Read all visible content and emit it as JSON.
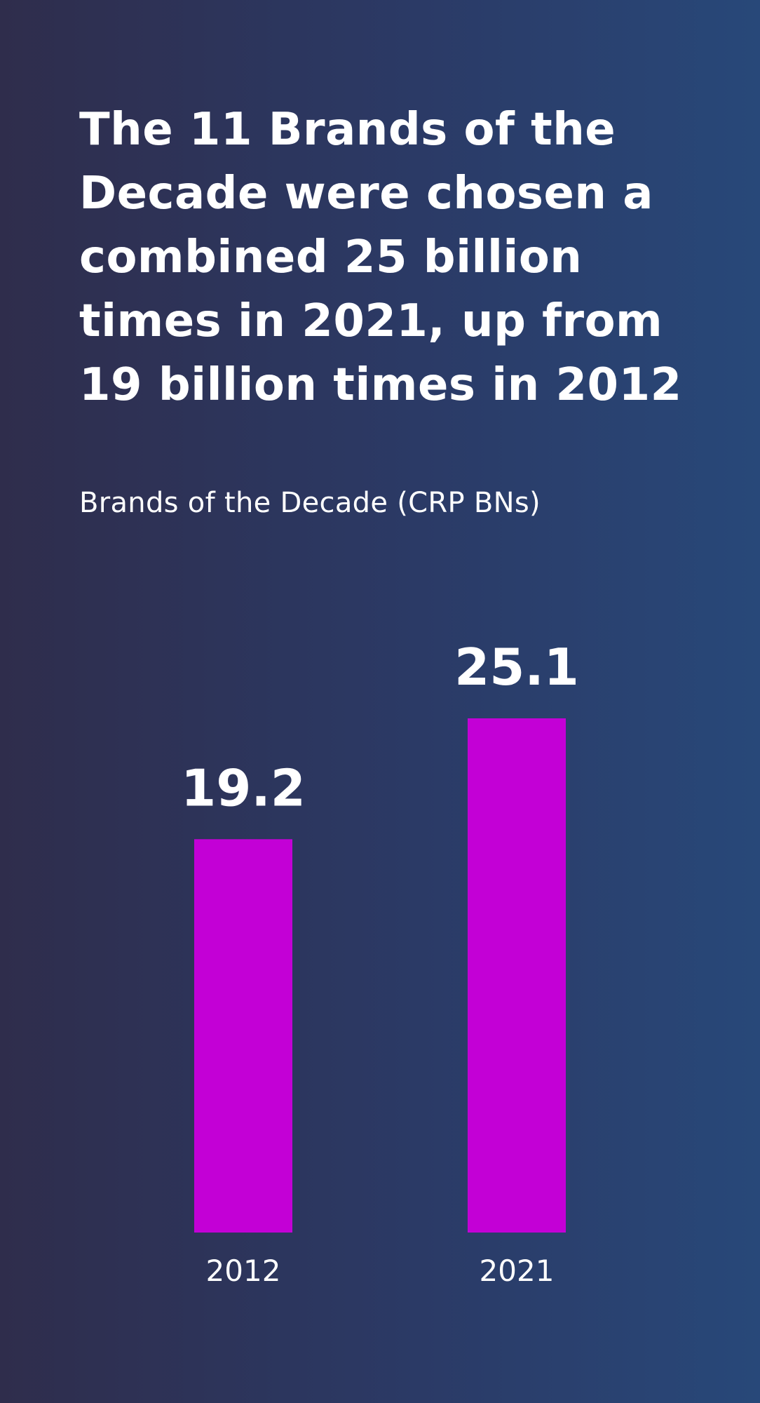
{
  "headline": {
    "lines": [
      "The 11 Brands of the",
      "Decade were chosen a",
      "combined 25 billion",
      "times in 2021, up from",
      "19 billion times in 2012"
    ]
  },
  "chart_data": {
    "type": "bar",
    "title": "Brands of the Decade (CRP BNs)",
    "categories": [
      "2012",
      "2021"
    ],
    "values": [
      19.2,
      25.1
    ],
    "value_labels": [
      "19.2",
      "25.1"
    ],
    "ylim": [
      0,
      25.1
    ],
    "grid": false,
    "legend": "none",
    "bar_color": "#c300d6",
    "background_colors": [
      "#2f2d4c",
      "#284879"
    ]
  }
}
